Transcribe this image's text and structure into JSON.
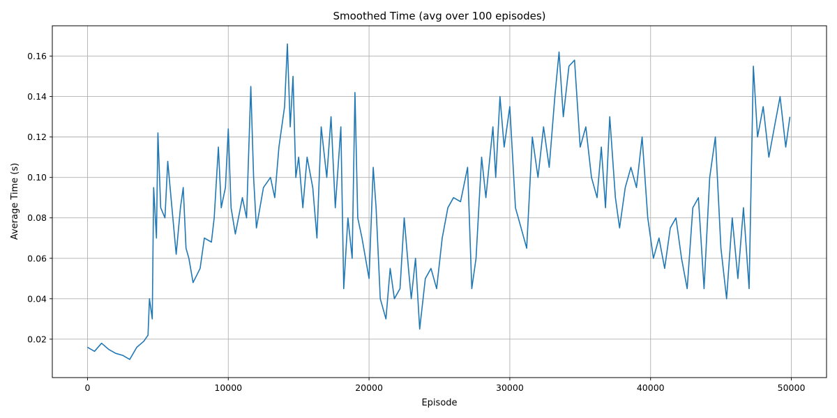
{
  "chart_data": {
    "type": "line",
    "title": "Smoothed Time (avg over 100 episodes)",
    "xlabel": "Episode",
    "ylabel": "Average Time (s)",
    "xlim": [
      -2500,
      52500
    ],
    "ylim": [
      0.001,
      0.175
    ],
    "xticks": [
      0,
      10000,
      20000,
      30000,
      40000,
      50000
    ],
    "yticks": [
      0.02,
      0.04,
      0.06,
      0.08,
      0.1,
      0.12,
      0.14,
      0.16
    ],
    "ytick_labels": [
      "0.02",
      "0.04",
      "0.06",
      "0.08",
      "0.10",
      "0.12",
      "0.14",
      "0.16"
    ],
    "grid": true,
    "series": [
      {
        "color": "#1f77b4",
        "points": [
          [
            0,
            0.016
          ],
          [
            500,
            0.014
          ],
          [
            1000,
            0.018
          ],
          [
            1500,
            0.015
          ],
          [
            2000,
            0.013
          ],
          [
            2500,
            0.012
          ],
          [
            3000,
            0.01
          ],
          [
            3500,
            0.016
          ],
          [
            4000,
            0.019
          ],
          [
            4300,
            0.022
          ],
          [
            4400,
            0.04
          ],
          [
            4600,
            0.03
          ],
          [
            4700,
            0.095
          ],
          [
            4900,
            0.07
          ],
          [
            5000,
            0.122
          ],
          [
            5200,
            0.085
          ],
          [
            5500,
            0.08
          ],
          [
            5700,
            0.108
          ],
          [
            6000,
            0.085
          ],
          [
            6300,
            0.062
          ],
          [
            6600,
            0.085
          ],
          [
            6800,
            0.095
          ],
          [
            7000,
            0.065
          ],
          [
            7200,
            0.06
          ],
          [
            7500,
            0.048
          ],
          [
            8000,
            0.055
          ],
          [
            8300,
            0.07
          ],
          [
            8800,
            0.068
          ],
          [
            9000,
            0.08
          ],
          [
            9300,
            0.115
          ],
          [
            9500,
            0.085
          ],
          [
            9800,
            0.095
          ],
          [
            10000,
            0.124
          ],
          [
            10200,
            0.085
          ],
          [
            10500,
            0.072
          ],
          [
            11000,
            0.09
          ],
          [
            11300,
            0.08
          ],
          [
            11600,
            0.145
          ],
          [
            11800,
            0.1
          ],
          [
            12000,
            0.075
          ],
          [
            12500,
            0.095
          ],
          [
            13000,
            0.1
          ],
          [
            13300,
            0.09
          ],
          [
            13600,
            0.115
          ],
          [
            14000,
            0.135
          ],
          [
            14200,
            0.166
          ],
          [
            14400,
            0.125
          ],
          [
            14600,
            0.15
          ],
          [
            14800,
            0.1
          ],
          [
            15000,
            0.11
          ],
          [
            15300,
            0.085
          ],
          [
            15600,
            0.11
          ],
          [
            16000,
            0.095
          ],
          [
            16300,
            0.07
          ],
          [
            16600,
            0.125
          ],
          [
            17000,
            0.1
          ],
          [
            17300,
            0.13
          ],
          [
            17600,
            0.085
          ],
          [
            18000,
            0.125
          ],
          [
            18200,
            0.045
          ],
          [
            18500,
            0.08
          ],
          [
            18800,
            0.06
          ],
          [
            19000,
            0.142
          ],
          [
            19200,
            0.08
          ],
          [
            19500,
            0.07
          ],
          [
            20000,
            0.05
          ],
          [
            20300,
            0.105
          ],
          [
            20500,
            0.085
          ],
          [
            20800,
            0.04
          ],
          [
            21200,
            0.03
          ],
          [
            21500,
            0.055
          ],
          [
            21800,
            0.04
          ],
          [
            22200,
            0.045
          ],
          [
            22500,
            0.08
          ],
          [
            22800,
            0.055
          ],
          [
            23000,
            0.04
          ],
          [
            23300,
            0.06
          ],
          [
            23600,
            0.025
          ],
          [
            24000,
            0.05
          ],
          [
            24400,
            0.055
          ],
          [
            24800,
            0.045
          ],
          [
            25200,
            0.07
          ],
          [
            25600,
            0.085
          ],
          [
            26000,
            0.09
          ],
          [
            26500,
            0.088
          ],
          [
            27000,
            0.105
          ],
          [
            27300,
            0.045
          ],
          [
            27600,
            0.06
          ],
          [
            28000,
            0.11
          ],
          [
            28300,
            0.09
          ],
          [
            28800,
            0.125
          ],
          [
            29000,
            0.1
          ],
          [
            29300,
            0.14
          ],
          [
            29600,
            0.115
          ],
          [
            30000,
            0.135
          ],
          [
            30400,
            0.085
          ],
          [
            30800,
            0.075
          ],
          [
            31200,
            0.065
          ],
          [
            31600,
            0.12
          ],
          [
            32000,
            0.1
          ],
          [
            32400,
            0.125
          ],
          [
            32800,
            0.105
          ],
          [
            33200,
            0.14
          ],
          [
            33500,
            0.162
          ],
          [
            33800,
            0.13
          ],
          [
            34200,
            0.155
          ],
          [
            34600,
            0.158
          ],
          [
            35000,
            0.115
          ],
          [
            35400,
            0.125
          ],
          [
            35800,
            0.1
          ],
          [
            36200,
            0.09
          ],
          [
            36500,
            0.115
          ],
          [
            36800,
            0.085
          ],
          [
            37100,
            0.13
          ],
          [
            37500,
            0.09
          ],
          [
            37800,
            0.075
          ],
          [
            38200,
            0.095
          ],
          [
            38600,
            0.105
          ],
          [
            39000,
            0.095
          ],
          [
            39400,
            0.12
          ],
          [
            39800,
            0.08
          ],
          [
            40200,
            0.06
          ],
          [
            40600,
            0.07
          ],
          [
            41000,
            0.055
          ],
          [
            41400,
            0.075
          ],
          [
            41800,
            0.08
          ],
          [
            42200,
            0.06
          ],
          [
            42600,
            0.045
          ],
          [
            43000,
            0.085
          ],
          [
            43400,
            0.09
          ],
          [
            43800,
            0.045
          ],
          [
            44200,
            0.1
          ],
          [
            44600,
            0.12
          ],
          [
            45000,
            0.065
          ],
          [
            45400,
            0.04
          ],
          [
            45800,
            0.08
          ],
          [
            46200,
            0.05
          ],
          [
            46600,
            0.085
          ],
          [
            47000,
            0.045
          ],
          [
            47300,
            0.155
          ],
          [
            47600,
            0.12
          ],
          [
            48000,
            0.135
          ],
          [
            48400,
            0.11
          ],
          [
            48800,
            0.125
          ],
          [
            49200,
            0.14
          ],
          [
            49600,
            0.115
          ],
          [
            49900,
            0.13
          ]
        ]
      }
    ]
  }
}
